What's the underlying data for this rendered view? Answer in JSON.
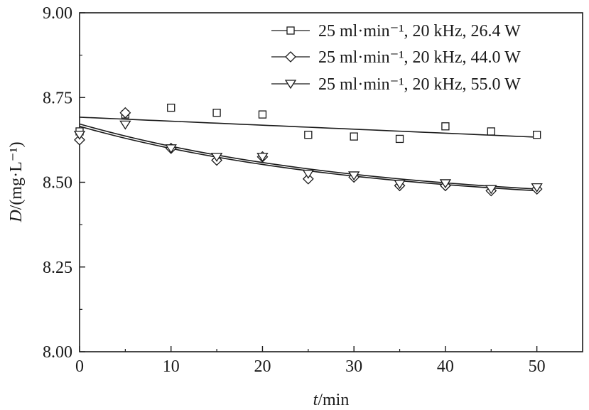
{
  "chart_data": {
    "type": "scatter",
    "title": "",
    "xlabel": {
      "var": "t",
      "unit": "/min"
    },
    "ylabel": {
      "var": "D",
      "unit": "/(mg·L⁻¹)"
    },
    "xlim": [
      0,
      55
    ],
    "ylim": [
      8.0,
      9.0
    ],
    "xticks": [
      0,
      10,
      20,
      30,
      40,
      50
    ],
    "xtick_labels": [
      "0",
      "10",
      "20",
      "30",
      "40",
      "50"
    ],
    "yticks": [
      8.0,
      8.25,
      8.5,
      8.75,
      9.0
    ],
    "ytick_labels": [
      "8.00",
      "8.25",
      "8.50",
      "8.75",
      "9.00"
    ],
    "grid": false,
    "legend_position": "top-right",
    "series": [
      {
        "name": "25 ml·min⁻¹, 20 kHz, 26.4 W",
        "marker": "square",
        "x": [
          0,
          5,
          10,
          15,
          20,
          25,
          30,
          35,
          40,
          45,
          50
        ],
        "y": [
          8.65,
          8.7,
          8.72,
          8.705,
          8.7,
          8.64,
          8.635,
          8.628,
          8.665,
          8.65,
          8.64
        ],
        "fit": {
          "x0": 0,
          "y0": 8.692,
          "x1": 50,
          "y1": 8.633,
          "shape": "linear"
        }
      },
      {
        "name": "25 ml·min⁻¹, 20 kHz, 44.0 W",
        "marker": "diamond",
        "x": [
          0,
          5,
          10,
          15,
          20,
          25,
          30,
          35,
          40,
          45,
          50
        ],
        "y": [
          8.625,
          8.705,
          8.6,
          8.565,
          8.575,
          8.51,
          8.515,
          8.49,
          8.49,
          8.475,
          8.48
        ],
        "fit": {
          "x0": 0,
          "y0": 8.665,
          "x1": 50,
          "y1": 8.475,
          "shape": "decay"
        }
      },
      {
        "name": "25 ml·min⁻¹, 20 kHz, 55.0 W",
        "marker": "triangle-down",
        "x": [
          0,
          5,
          10,
          15,
          20,
          25,
          30,
          35,
          40,
          45,
          50
        ],
        "y": [
          8.64,
          8.67,
          8.6,
          8.575,
          8.575,
          8.525,
          8.52,
          8.495,
          8.497,
          8.48,
          8.485
        ],
        "fit": {
          "x0": 0,
          "y0": 8.672,
          "x1": 50,
          "y1": 8.48,
          "shape": "decay"
        }
      }
    ]
  },
  "colors": {
    "ink": "#1a1a1a",
    "background": "#ffffff"
  }
}
